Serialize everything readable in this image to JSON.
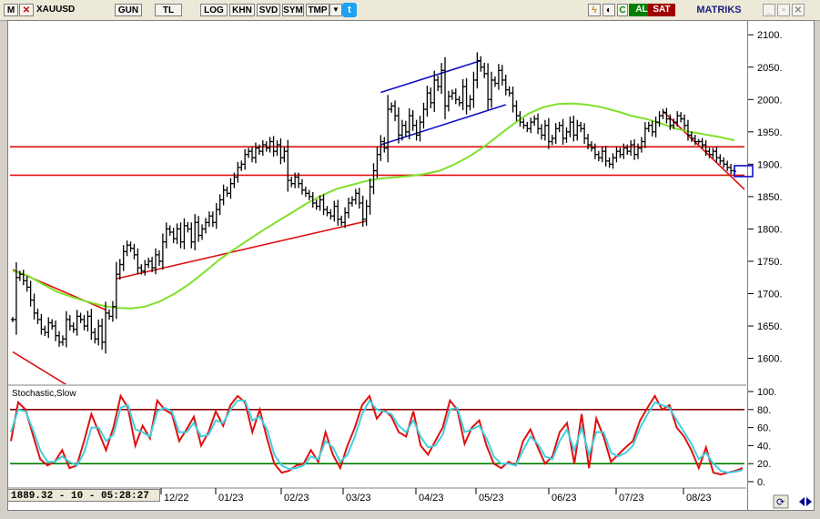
{
  "toolbar": {
    "menu_label": "M",
    "symbol": "XAUUSD",
    "buttons": [
      "GUN",
      "TL",
      "LOG",
      "KHN",
      "SVD",
      "SYM",
      "TMP"
    ],
    "buy_label": "AL",
    "sell_label": "SAT",
    "brand": "MATRIKS",
    "c_label": "C",
    "window_controls": [
      "minimize-icon",
      "restore-icon",
      "close-icon"
    ]
  },
  "status": {
    "readout": "1889.32 - 10 - 05:28:27"
  },
  "colors": {
    "price_bars": "#000000",
    "moving_average": "#7fe02a",
    "support_resistance": "#e01010",
    "channel": "#1010c8",
    "stoch_k": "#e01010",
    "stoch_d": "#40d0e0",
    "level_80": "#8b0000",
    "level_20": "#008000",
    "buy": "#008000",
    "sell": "#a00000"
  },
  "chart_data": [
    {
      "type": "ohlc",
      "symbol": "XAUUSD",
      "ylim": [
        1560,
        2120
      ],
      "y_ticks": [
        1600,
        1650,
        1700,
        1750,
        1800,
        1850,
        1900,
        1950,
        2000,
        2050,
        2100
      ],
      "x_tick_labels": [
        "12/22",
        "01/23",
        "02/23",
        "03/23",
        "04/23",
        "05/23",
        "06/23",
        "07/23",
        "08/23"
      ],
      "last_value": 1889.32,
      "close_series": [
        1660,
        1725,
        1730,
        1720,
        1710,
        1690,
        1670,
        1660,
        1645,
        1640,
        1655,
        1650,
        1635,
        1625,
        1630,
        1660,
        1650,
        1645,
        1665,
        1660,
        1650,
        1665,
        1640,
        1630,
        1650,
        1625,
        1670,
        1665,
        1680,
        1730,
        1745,
        1765,
        1775,
        1770,
        1760,
        1740,
        1735,
        1745,
        1750,
        1740,
        1760,
        1750,
        1780,
        1800,
        1795,
        1785,
        1800,
        1780,
        1805,
        1800,
        1780,
        1810,
        1790,
        1800,
        1810,
        1820,
        1810,
        1830,
        1845,
        1860,
        1855,
        1870,
        1880,
        1895,
        1900,
        1915,
        1920,
        1910,
        1925,
        1920,
        1930,
        1925,
        1935,
        1920,
        1930,
        1910,
        1920,
        1875,
        1870,
        1880,
        1870,
        1860,
        1855,
        1850,
        1840,
        1835,
        1845,
        1830,
        1825,
        1820,
        1835,
        1815,
        1810,
        1825,
        1840,
        1845,
        1855,
        1840,
        1815,
        1835,
        1865,
        1890,
        1915,
        1935,
        1925,
        1985,
        1990,
        1975,
        1945,
        1960,
        1950,
        1975,
        1960,
        1945,
        1965,
        1985,
        2010,
        1995,
        2030,
        2020,
        2045,
        1990,
        2005,
        2010,
        2000,
        1995,
        2020,
        1990,
        2000,
        2030,
        2060,
        2050,
        2040,
        2000,
        2030,
        2025,
        2045,
        2030,
        2015,
        2010,
        1990,
        1975,
        1965,
        1960,
        1955,
        1965,
        1970,
        1955,
        1945,
        1960,
        1935,
        1940,
        1955,
        1960,
        1940,
        1950,
        1965,
        1945,
        1960,
        1955,
        1940,
        1930,
        1925,
        1915,
        1910,
        1920,
        1905,
        1900,
        1910,
        1920,
        1915,
        1925,
        1920,
        1930,
        1915,
        1925,
        1935,
        1955,
        1960,
        1950,
        1965,
        1975,
        1980,
        1970,
        1960,
        1965,
        1975,
        1970,
        1960,
        1945,
        1940,
        1935,
        1935,
        1930,
        1920,
        1915,
        1920,
        1910,
        1905,
        1900,
        1895,
        1890,
        1889
      ],
      "ma_series": [
        1735,
        1728,
        1715,
        1703,
        1695,
        1688,
        1682,
        1678,
        1677,
        1680,
        1688,
        1700,
        1715,
        1733,
        1752,
        1768,
        1783,
        1798,
        1812,
        1826,
        1840,
        1852,
        1862,
        1868,
        1874,
        1878,
        1880,
        1882,
        1885,
        1890,
        1900,
        1912,
        1927,
        1945,
        1962,
        1978,
        1988,
        1993,
        1994,
        1992,
        1988,
        1982,
        1975,
        1970,
        1963,
        1955,
        1950,
        1946,
        1942,
        1937
      ],
      "horizontal_lines": [
        1927,
        1883
      ],
      "trend_lines": [
        {
          "color": "support",
          "from": [
            0,
            1737
          ],
          "to": [
            26,
            1675
          ]
        },
        {
          "color": "support",
          "from": [
            0,
            1610
          ],
          "to": [
            26,
            1522
          ]
        },
        {
          "color": "support",
          "from": [
            29,
            1723
          ],
          "to": [
            99,
            1812
          ]
        },
        {
          "color": "channel",
          "from": [
            103,
            2011
          ],
          "to": [
            131,
            2060
          ]
        },
        {
          "color": "channel",
          "from": [
            103,
            1930
          ],
          "to": [
            138,
            1992
          ]
        },
        {
          "color": "support",
          "from": [
            182,
            1982
          ],
          "to": [
            205,
            1860
          ]
        }
      ]
    },
    {
      "type": "line",
      "title": "Stochastic,Slow",
      "ylim": [
        0,
        100
      ],
      "y_ticks": [
        0,
        20,
        40,
        60,
        80,
        100
      ],
      "levels": [
        80,
        20
      ],
      "series": [
        {
          "name": "%K",
          "values": [
            45,
            88,
            80,
            52,
            25,
            18,
            22,
            35,
            15,
            18,
            45,
            75,
            55,
            35,
            60,
            95,
            82,
            40,
            62,
            48,
            90,
            80,
            75,
            45,
            58,
            72,
            40,
            55,
            78,
            62,
            85,
            95,
            88,
            55,
            80,
            48,
            20,
            10,
            12,
            18,
            20,
            35,
            22,
            55,
            30,
            15,
            40,
            60,
            85,
            95,
            70,
            80,
            72,
            55,
            50,
            78,
            40,
            30,
            45,
            60,
            90,
            80,
            42,
            60,
            68,
            40,
            20,
            15,
            22,
            18,
            45,
            58,
            38,
            20,
            28,
            55,
            65,
            20,
            75,
            15,
            70,
            50,
            22,
            30,
            38,
            45,
            68,
            82,
            95,
            80,
            85,
            60,
            50,
            35,
            15,
            38,
            10,
            8,
            10,
            12,
            15
          ]
        },
        {
          "name": "%D",
          "values": [
            55,
            80,
            78,
            58,
            35,
            22,
            22,
            28,
            22,
            18,
            32,
            60,
            60,
            45,
            52,
            82,
            85,
            58,
            55,
            50,
            78,
            82,
            78,
            55,
            55,
            65,
            50,
            52,
            68,
            65,
            80,
            90,
            90,
            68,
            72,
            58,
            30,
            18,
            14,
            15,
            18,
            28,
            25,
            45,
            38,
            22,
            30,
            50,
            75,
            90,
            80,
            78,
            75,
            62,
            55,
            68,
            50,
            38,
            40,
            52,
            80,
            82,
            55,
            58,
            62,
            48,
            28,
            20,
            20,
            18,
            35,
            50,
            42,
            28,
            25,
            45,
            58,
            35,
            60,
            30,
            55,
            55,
            32,
            28,
            32,
            40,
            60,
            75,
            88,
            85,
            82,
            68,
            55,
            42,
            25,
            32,
            20,
            12,
            10,
            11,
            13
          ]
        }
      ]
    }
  ]
}
